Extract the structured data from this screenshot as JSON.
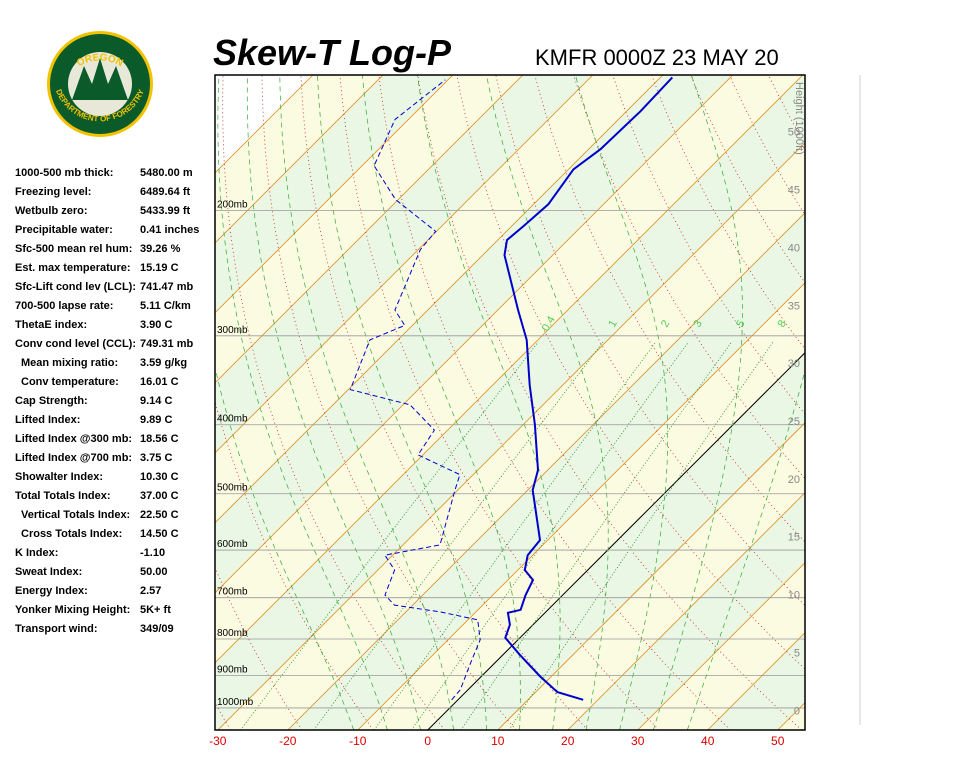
{
  "logo": {
    "top": "OREGON",
    "bottom": "DEPARTMENT OF FORESTRY"
  },
  "header": {
    "title": "Skew-T Log-P",
    "station": "KMFR 0000Z 23 MAY 20"
  },
  "indices": [
    {
      "label": "1000-500 mb thick:",
      "value": "5480.00 m"
    },
    {
      "label": "Freezing level:",
      "value": "6489.64 ft"
    },
    {
      "label": "Wetbulb zero:",
      "value": "5433.99 ft"
    },
    {
      "label": "Precipitable water:",
      "value": "0.41 inches"
    },
    {
      "label": "Sfc-500 mean rel hum:",
      "value": "39.26 %"
    },
    {
      "label": "Est. max temperature:",
      "value": "15.19 C"
    },
    {
      "label": "Sfc-Lift cond lev (LCL):",
      "value": "741.47 mb"
    },
    {
      "label": "700-500 lapse rate:",
      "value": "5.11 C/km"
    },
    {
      "label": "ThetaE index:",
      "value": "3.90 C"
    },
    {
      "label": "Conv cond level (CCL):",
      "value": "749.31 mb",
      "details": [
        {
          "label": "Mean mixing ratio:",
          "value": "3.59 g/kg"
        },
        {
          "label": "Conv temperature:",
          "value": "16.01 C"
        }
      ]
    },
    {
      "label": "Cap Strength:",
      "value": "9.14 C"
    },
    {
      "label": "Lifted Index:",
      "value": "9.89 C"
    },
    {
      "label": "Lifted Index @300 mb:",
      "value": "18.56 C"
    },
    {
      "label": "Lifted Index @700 mb:",
      "value": "3.75 C"
    },
    {
      "label": "Showalter Index:",
      "value": "10.30 C"
    },
    {
      "label": "Total Totals Index:",
      "value": "37.00 C",
      "details": [
        {
          "label": "Vertical Totals Index:",
          "value": "22.50 C"
        },
        {
          "label": "Cross Totals Index:",
          "value": "14.50 C"
        }
      ]
    },
    {
      "label": "K Index:",
      "value": "-1.10"
    },
    {
      "label": "Sweat Index:",
      "value": "50.00"
    },
    {
      "label": "Energy Index:",
      "value": "2.57"
    },
    {
      "label": "Yonker Mixing Height:",
      "value": "5K+ ft"
    },
    {
      "label": "Transport wind:",
      "value": "349/09"
    }
  ],
  "chart_data": {
    "type": "skewt",
    "xlim": [
      -30.4,
      53.9
    ],
    "xticks": [
      -30,
      -20,
      -10,
      0,
      10,
      20,
      30,
      40,
      50
    ],
    "ylim": [
      1074,
      129
    ],
    "log_y": true,
    "yticks": [
      {
        "value": 200,
        "label": "200mb"
      },
      {
        "value": 300,
        "label": "300mb"
      },
      {
        "value": 400,
        "label": "400mb"
      },
      {
        "value": 500,
        "label": "500mb"
      },
      {
        "value": 600,
        "label": "600mb"
      },
      {
        "value": 700,
        "label": "700mb"
      },
      {
        "value": 800,
        "label": "800mb"
      },
      {
        "value": 900,
        "label": "900mb"
      },
      {
        "value": 1000,
        "label": "1000mb"
      }
    ],
    "y2label": "Height (1000ft)",
    "y2lim": [
      -1.7,
      54.9
    ],
    "y2ticks": [
      0,
      5,
      10,
      15,
      20,
      25,
      30,
      35,
      40,
      45,
      50
    ],
    "mixing_ratio_labels": [
      0.4,
      1,
      2,
      3,
      5,
      8
    ],
    "temperature": {
      "color": "#0000cc",
      "pressure": [
        974,
        950,
        902,
        842,
        797,
        764,
        735,
        728,
        694,
        661,
        640,
        610,
        581,
        494,
        463,
        400,
        352,
        304,
        276,
        231,
        220,
        210,
        196,
        175,
        164,
        145,
        130
      ],
      "values": [
        17.9,
        13.1,
        8.3,
        2.4,
        -2.1,
        -3.3,
        -5.3,
        -3.9,
        -5.3,
        -6.4,
        -9.0,
        -10.7,
        -11.1,
        -19.3,
        -21.4,
        -28.3,
        -34.7,
        -41.6,
        -47.1,
        -56.9,
        -58.7,
        -58.3,
        -57.9,
        -59.3,
        -58.3,
        -58.0,
        -58.3
      ]
    },
    "dewpoint": {
      "color": "#0000cc",
      "pressure": [
        974,
        943,
        870,
        802,
        752,
        733,
        717,
        694,
        640,
        610,
        590,
        494,
        470,
        441,
        407,
        375,
        357,
        304,
        290,
        276,
        227,
        214,
        193,
        173,
        149,
        131
      ],
      "values": [
        -0.9,
        -1.1,
        -3.3,
        -5.4,
        -8.6,
        -15.1,
        -22.6,
        -25.4,
        -27.6,
        -31.1,
        -24.7,
        -30.4,
        -31.9,
        -40.7,
        -41.9,
        -49.0,
        -59.7,
        -64.0,
        -61.1,
        -64.7,
        -69.7,
        -70.1,
        -80.4,
        -88.3,
        -91.9,
        -90.4
      ]
    }
  }
}
